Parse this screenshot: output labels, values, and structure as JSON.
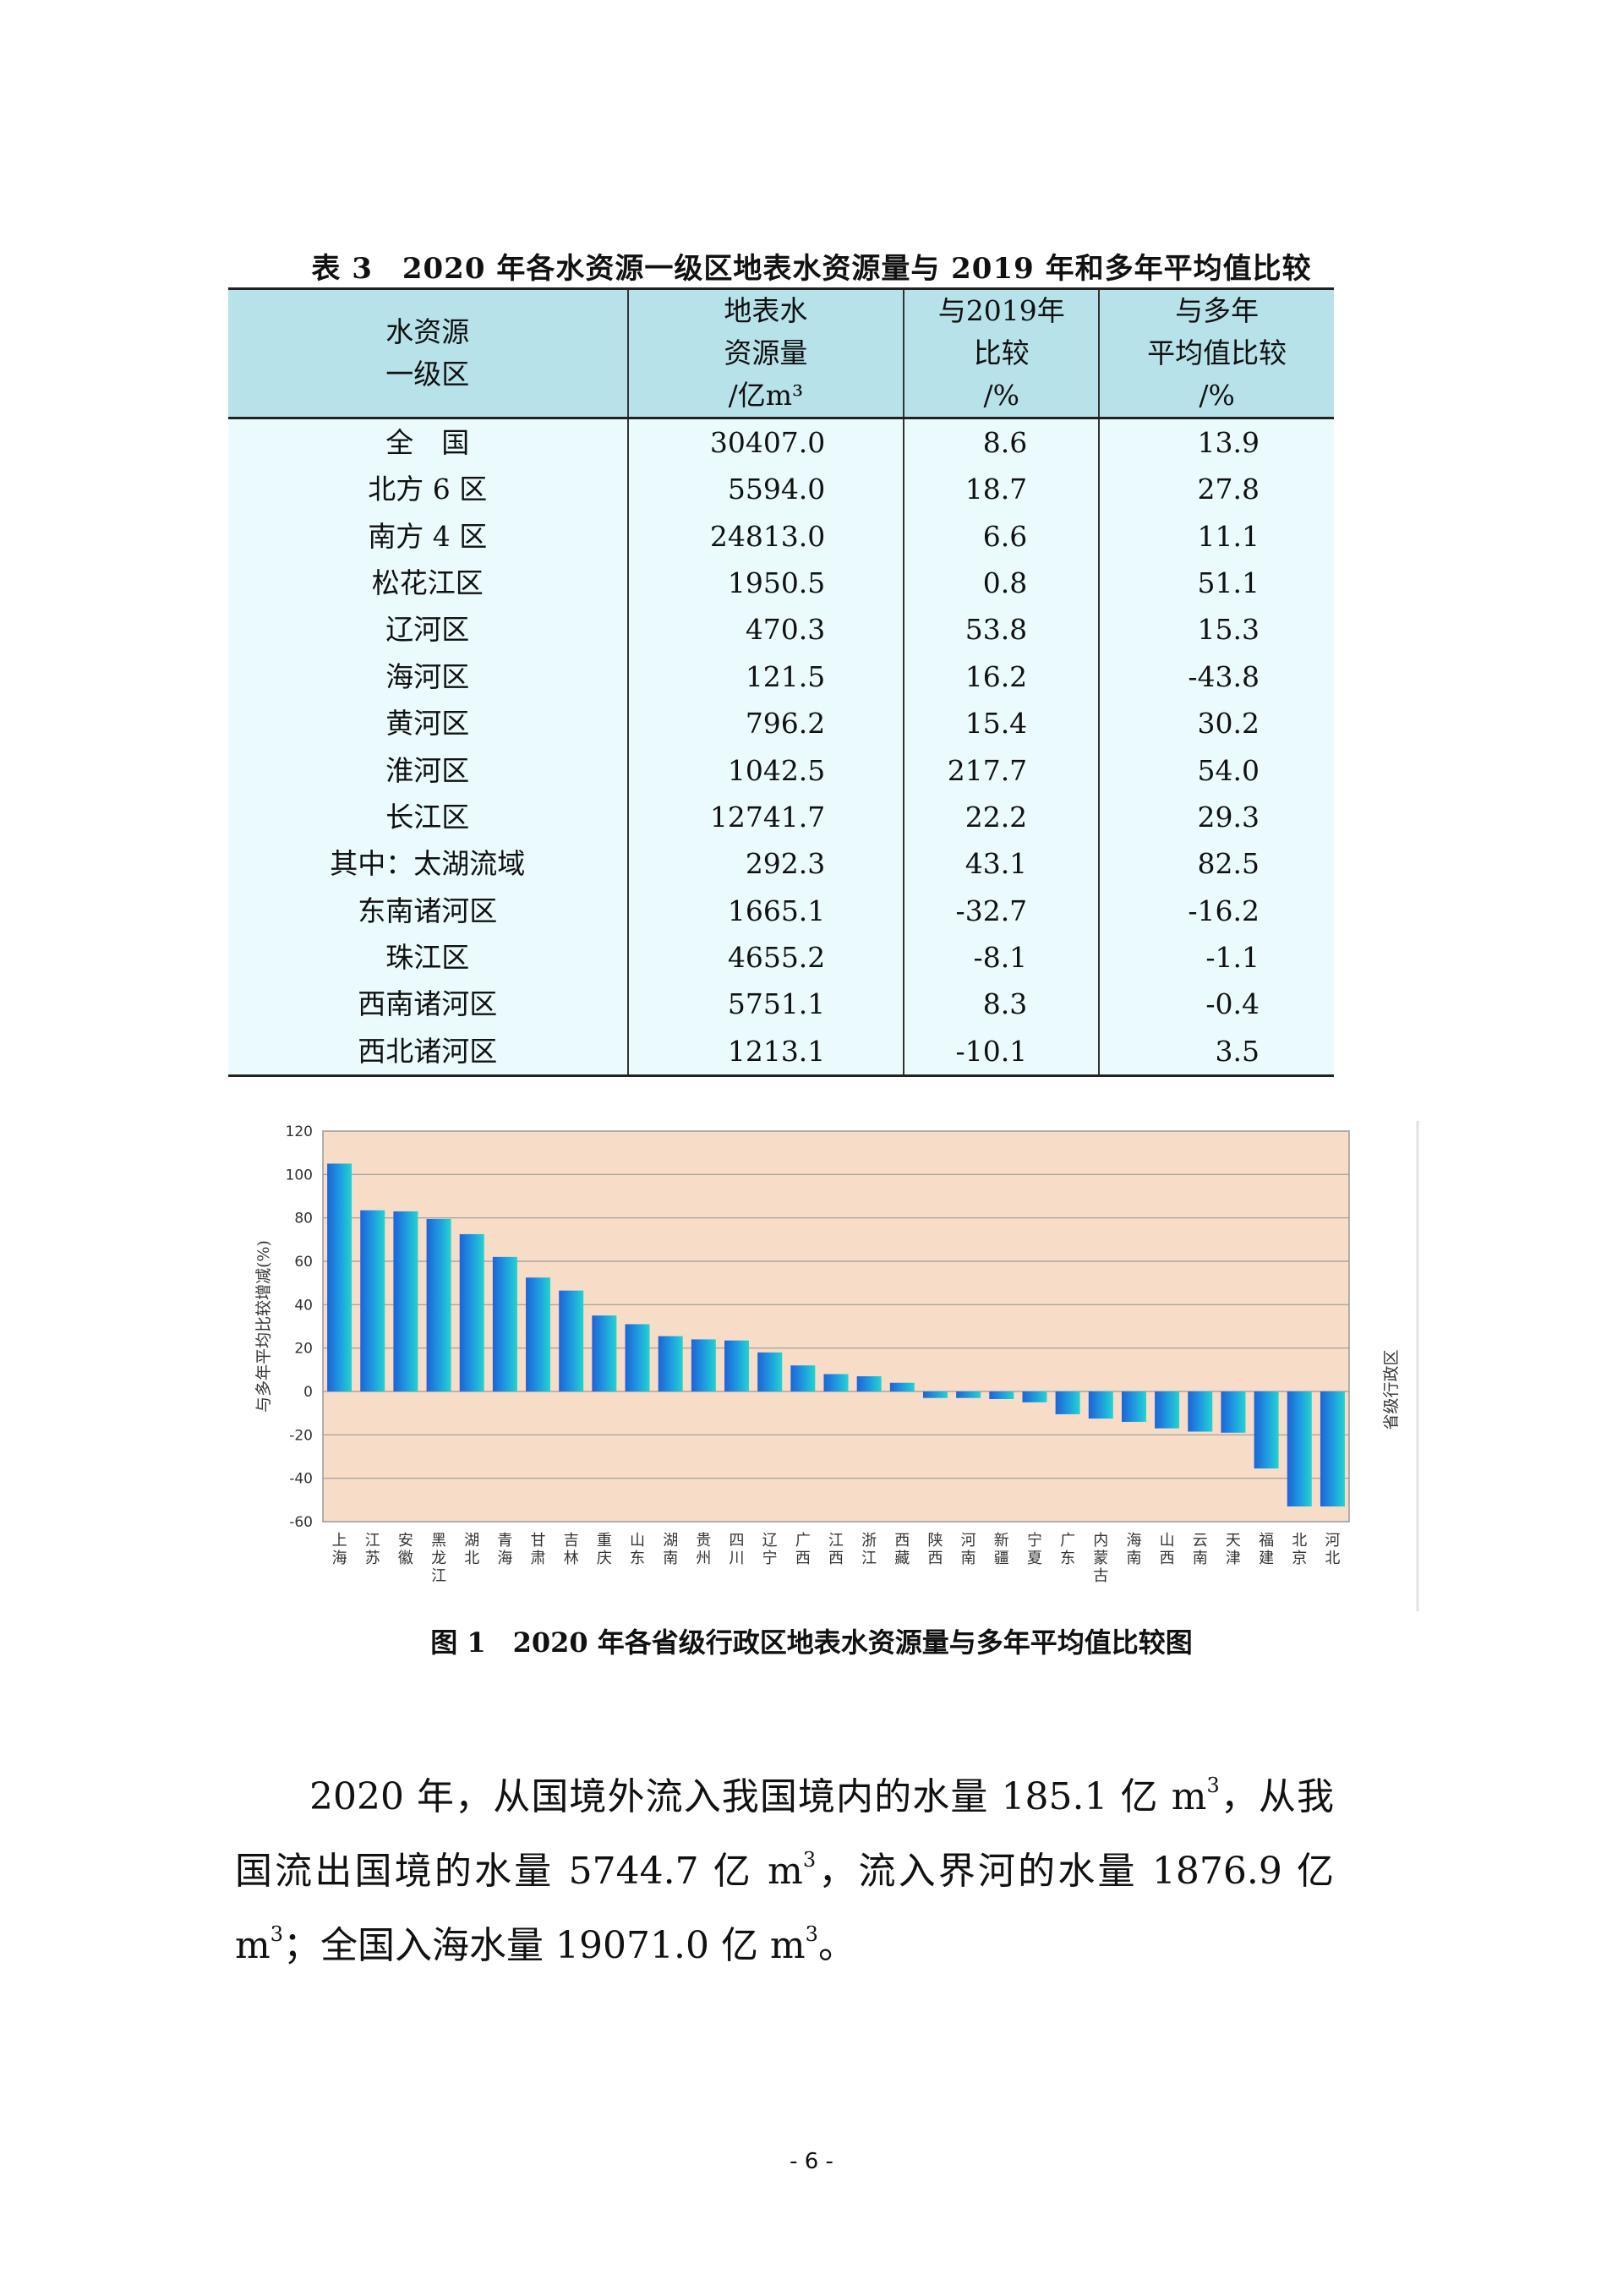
{
  "table": {
    "title": "表 3　2020 年各水资源一级区地表水资源量与 2019 年和多年平均值比较",
    "headers": {
      "col1": [
        "水资源",
        "一级区"
      ],
      "col2": [
        "地表水",
        "资源量",
        "/亿m³"
      ],
      "col3": [
        "与2019年",
        "比较",
        "/%"
      ],
      "col4": [
        "与多年",
        "平均值比较",
        "/%"
      ]
    },
    "rows": [
      [
        "全　国",
        "30407.0",
        "8.6",
        "13.9"
      ],
      [
        "北方 6 区",
        "5594.0",
        "18.7",
        "27.8"
      ],
      [
        "南方 4 区",
        "24813.0",
        "6.6",
        "11.1"
      ],
      [
        "松花江区",
        "1950.5",
        "0.8",
        "51.1"
      ],
      [
        "辽河区",
        "470.3",
        "53.8",
        "15.3"
      ],
      [
        "海河区",
        "121.5",
        "16.2",
        "-43.8"
      ],
      [
        "黄河区",
        "796.2",
        "15.4",
        "30.2"
      ],
      [
        "淮河区",
        "1042.5",
        "217.7",
        "54.0"
      ],
      [
        "长江区",
        "12741.7",
        "22.2",
        "29.3"
      ],
      [
        "其中：太湖流域",
        "292.3",
        "43.1",
        "82.5"
      ],
      [
        "东南诸河区",
        "1665.1",
        "-32.7",
        "-16.2"
      ],
      [
        "珠江区",
        "4655.2",
        "-8.1",
        "-1.1"
      ],
      [
        "西南诸河区",
        "5751.1",
        "8.3",
        "-0.4"
      ],
      [
        "西北诸河区",
        "1213.1",
        "-10.1",
        "3.5"
      ]
    ]
  },
  "chart_data": {
    "type": "bar",
    "title": "",
    "ylabel": "与多年平均比较增减(%)",
    "xlabel": "省级行政区",
    "ylim": [
      -60,
      120
    ],
    "yticks": [
      120,
      100,
      80,
      60,
      40,
      20,
      0,
      -20,
      -40,
      -60
    ],
    "grid": true,
    "categories": [
      "上海",
      "江苏",
      "安徽",
      "黑龙江",
      "湖北",
      "青海",
      "甘肃",
      "吉林",
      "重庆",
      "山东",
      "湖南",
      "贵州",
      "四川",
      "辽宁",
      "广西",
      "江西",
      "浙江",
      "西藏",
      "陕西",
      "河南",
      "新疆",
      "宁夏",
      "广东",
      "内蒙古",
      "海南",
      "山西",
      "云南",
      "天津",
      "福建",
      "北京",
      "河北"
    ],
    "values": [
      105,
      83.5,
      83,
      79.5,
      72.5,
      62,
      52.5,
      46.5,
      35,
      31,
      25.5,
      24,
      23.5,
      18,
      12,
      8,
      7,
      4,
      -3,
      -3,
      -3.5,
      -5,
      -10.5,
      -12.5,
      -14,
      -17,
      -18.5,
      -19,
      -35.5,
      -53,
      -53
    ],
    "colors": {
      "plot_bg": "#f7dcc8",
      "grid": "#9a9a9a",
      "bar_dark": "#1e63d6",
      "bar_light": "#22d4cf"
    }
  },
  "figure_caption": "图 1　2020 年各省级行政区地表水资源量与多年平均值比较图",
  "paragraph": {
    "seg1": "2020 年，从国境外流入我国境内的水量 185.1 亿 m",
    "seg2": "，从我国流出国境的水量 5744.7 亿 m",
    "seg3": "，流入界河的水量 1876.9 亿 m",
    "seg4": "；全国入海水量 19071.0 亿 m",
    "seg5": "。",
    "sup": "3"
  },
  "page_number": "- 6 -"
}
